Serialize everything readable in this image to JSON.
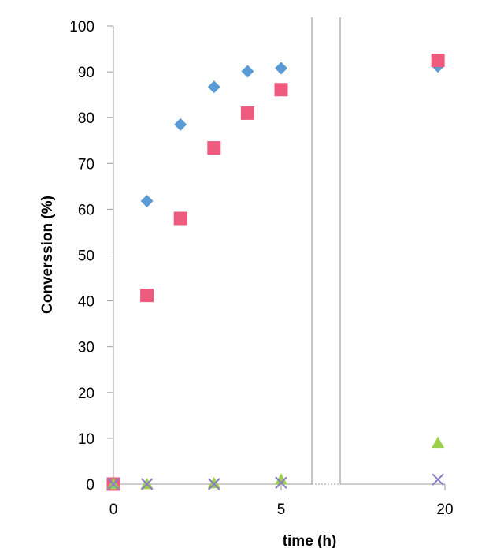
{
  "chart_data": {
    "type": "scatter",
    "title": "",
    "xlabel": "time (h)",
    "ylabel": "Converssion (%)",
    "xlim": [
      0,
      20
    ],
    "ylim": [
      0,
      100
    ],
    "x_ticks": [
      "0",
      "5",
      "20"
    ],
    "y_ticks": [
      "0",
      "10",
      "20",
      "30",
      "40",
      "50",
      "60",
      "70",
      "80",
      "90",
      "100"
    ],
    "x_break": "axis break between 5 and 20",
    "grid": false,
    "legend": "none",
    "series": [
      {
        "marker": "diamond",
        "color": "#5b9bd5",
        "points": [
          [
            0,
            0
          ],
          [
            1,
            61.8
          ],
          [
            2,
            78.5
          ],
          [
            3,
            86.7
          ],
          [
            4,
            90.1
          ],
          [
            5,
            90.8
          ],
          [
            19,
            91.2
          ]
        ]
      },
      {
        "marker": "square",
        "color": "#ef5b7e",
        "points": [
          [
            0,
            0
          ],
          [
            1,
            41.2
          ],
          [
            2,
            58.0
          ],
          [
            3,
            73.4
          ],
          [
            4,
            81.0
          ],
          [
            5,
            86.1
          ],
          [
            19,
            92.5
          ]
        ]
      },
      {
        "marker": "triangle",
        "color": "#9bd14a",
        "points": [
          [
            0,
            0
          ],
          [
            1,
            0
          ],
          [
            3,
            0.2
          ],
          [
            5,
            1.0
          ],
          [
            19,
            9.0
          ]
        ]
      },
      {
        "marker": "x",
        "color": "#8a7cc4",
        "points": [
          [
            0,
            0
          ],
          [
            1,
            0
          ],
          [
            3,
            0
          ],
          [
            5,
            0.3
          ],
          [
            19,
            1.0
          ]
        ]
      }
    ]
  }
}
